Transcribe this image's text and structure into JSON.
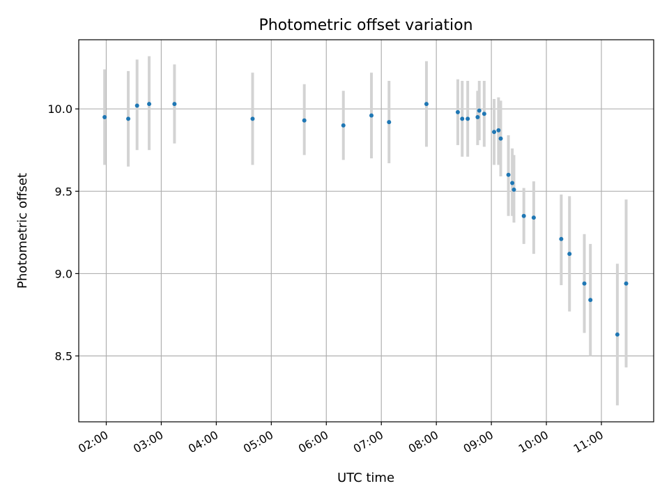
{
  "chart_data": {
    "type": "scatter",
    "title": "Photometric offset variation",
    "xlabel": "UTC time",
    "ylabel": "Photometric offset",
    "x_unit": "hours UTC",
    "xlim": [
      1.5,
      11.95
    ],
    "ylim": [
      8.1,
      10.42
    ],
    "grid": true,
    "x_ticks": [
      {
        "value": 2,
        "label": "02:00"
      },
      {
        "value": 3,
        "label": "03:00"
      },
      {
        "value": 4,
        "label": "04:00"
      },
      {
        "value": 5,
        "label": "05:00"
      },
      {
        "value": 6,
        "label": "06:00"
      },
      {
        "value": 7,
        "label": "07:00"
      },
      {
        "value": 8,
        "label": "08:00"
      },
      {
        "value": 9,
        "label": "09:00"
      },
      {
        "value": 10,
        "label": "10:00"
      },
      {
        "value": 11,
        "label": "11:00"
      }
    ],
    "y_ticks": [
      {
        "value": 8.5,
        "label": "8.5"
      },
      {
        "value": 9.0,
        "label": "9.0"
      },
      {
        "value": 9.5,
        "label": "9.5"
      },
      {
        "value": 10.0,
        "label": "10.0"
      }
    ],
    "points": [
      {
        "x": 1.97,
        "y": 9.95,
        "lo": 9.66,
        "hi": 10.24
      },
      {
        "x": 2.4,
        "y": 9.94,
        "lo": 9.65,
        "hi": 10.23
      },
      {
        "x": 2.56,
        "y": 10.02,
        "lo": 9.75,
        "hi": 10.3
      },
      {
        "x": 2.78,
        "y": 10.03,
        "lo": 9.75,
        "hi": 10.32
      },
      {
        "x": 3.24,
        "y": 10.03,
        "lo": 9.79,
        "hi": 10.27
      },
      {
        "x": 4.66,
        "y": 9.94,
        "lo": 9.66,
        "hi": 10.22
      },
      {
        "x": 5.6,
        "y": 9.93,
        "lo": 9.72,
        "hi": 10.15
      },
      {
        "x": 6.31,
        "y": 9.9,
        "lo": 9.69,
        "hi": 10.11
      },
      {
        "x": 6.82,
        "y": 9.96,
        "lo": 9.7,
        "hi": 10.22
      },
      {
        "x": 7.14,
        "y": 9.92,
        "lo": 9.67,
        "hi": 10.17
      },
      {
        "x": 7.82,
        "y": 10.03,
        "lo": 9.77,
        "hi": 10.29
      },
      {
        "x": 8.39,
        "y": 9.98,
        "lo": 9.78,
        "hi": 10.18
      },
      {
        "x": 8.47,
        "y": 9.94,
        "lo": 9.71,
        "hi": 10.17
      },
      {
        "x": 8.57,
        "y": 9.94,
        "lo": 9.71,
        "hi": 10.17
      },
      {
        "x": 8.75,
        "y": 9.95,
        "lo": 9.78,
        "hi": 10.11
      },
      {
        "x": 8.78,
        "y": 9.99,
        "lo": 9.81,
        "hi": 10.17
      },
      {
        "x": 8.87,
        "y": 9.97,
        "lo": 9.77,
        "hi": 10.17
      },
      {
        "x": 9.05,
        "y": 9.86,
        "lo": 9.66,
        "hi": 10.06
      },
      {
        "x": 9.13,
        "y": 9.87,
        "lo": 9.66,
        "hi": 10.07
      },
      {
        "x": 9.17,
        "y": 9.82,
        "lo": 9.59,
        "hi": 10.05
      },
      {
        "x": 9.31,
        "y": 9.6,
        "lo": 9.35,
        "hi": 9.84
      },
      {
        "x": 9.38,
        "y": 9.55,
        "lo": 9.35,
        "hi": 9.76
      },
      {
        "x": 9.41,
        "y": 9.51,
        "lo": 9.31,
        "hi": 9.72
      },
      {
        "x": 9.59,
        "y": 9.35,
        "lo": 9.18,
        "hi": 9.52
      },
      {
        "x": 9.77,
        "y": 9.34,
        "lo": 9.12,
        "hi": 9.56
      },
      {
        "x": 10.27,
        "y": 9.21,
        "lo": 8.93,
        "hi": 9.48
      },
      {
        "x": 10.42,
        "y": 9.12,
        "lo": 8.77,
        "hi": 9.47
      },
      {
        "x": 10.69,
        "y": 8.94,
        "lo": 8.64,
        "hi": 9.24
      },
      {
        "x": 10.8,
        "y": 8.84,
        "lo": 8.5,
        "hi": 9.18
      },
      {
        "x": 11.29,
        "y": 8.63,
        "lo": 8.2,
        "hi": 9.06
      },
      {
        "x": 11.45,
        "y": 8.94,
        "lo": 8.43,
        "hi": 9.45
      }
    ],
    "colors": {
      "marker": "#1f77b4",
      "errorbar": "#d3d3d3",
      "grid": "#b0b0b0",
      "axes": "#000000"
    }
  }
}
